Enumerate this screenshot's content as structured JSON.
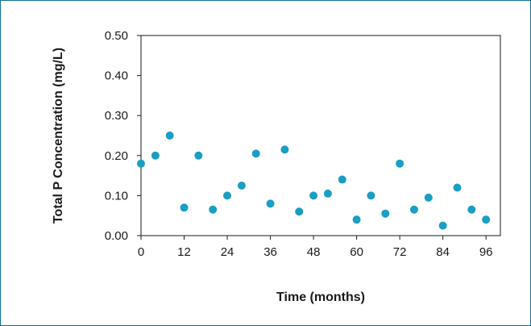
{
  "chart_data": {
    "type": "scatter",
    "title": "",
    "xlabel": "Time (months)",
    "ylabel": "Total P Concentration (mg/L)",
    "xlim": [
      0,
      100
    ],
    "ylim": [
      0,
      0.5
    ],
    "x_ticks": [
      "0",
      "12",
      "24",
      "36",
      "48",
      "60",
      "72",
      "84",
      "96"
    ],
    "y_ticks": [
      "0.00",
      "0.10",
      "0.20",
      "0.30",
      "0.40",
      "0.50"
    ],
    "grid": false,
    "legend": "none",
    "marker_color": "#1a9ec3",
    "series": [
      {
        "points": [
          {
            "x": 0,
            "y": 0.18
          },
          {
            "x": 4,
            "y": 0.2
          },
          {
            "x": 8,
            "y": 0.25
          },
          {
            "x": 12,
            "y": 0.07
          },
          {
            "x": 16,
            "y": 0.2
          },
          {
            "x": 20,
            "y": 0.065
          },
          {
            "x": 24,
            "y": 0.1
          },
          {
            "x": 28,
            "y": 0.125
          },
          {
            "x": 32,
            "y": 0.205
          },
          {
            "x": 36,
            "y": 0.08
          },
          {
            "x": 40,
            "y": 0.215
          },
          {
            "x": 44,
            "y": 0.06
          },
          {
            "x": 48,
            "y": 0.1
          },
          {
            "x": 52,
            "y": 0.105
          },
          {
            "x": 56,
            "y": 0.14
          },
          {
            "x": 60,
            "y": 0.04
          },
          {
            "x": 64,
            "y": 0.1
          },
          {
            "x": 68,
            "y": 0.055
          },
          {
            "x": 72,
            "y": 0.18
          },
          {
            "x": 76,
            "y": 0.065
          },
          {
            "x": 80,
            "y": 0.095
          },
          {
            "x": 84,
            "y": 0.025
          },
          {
            "x": 88,
            "y": 0.12
          },
          {
            "x": 92,
            "y": 0.065
          },
          {
            "x": 96,
            "y": 0.04
          }
        ]
      }
    ]
  }
}
